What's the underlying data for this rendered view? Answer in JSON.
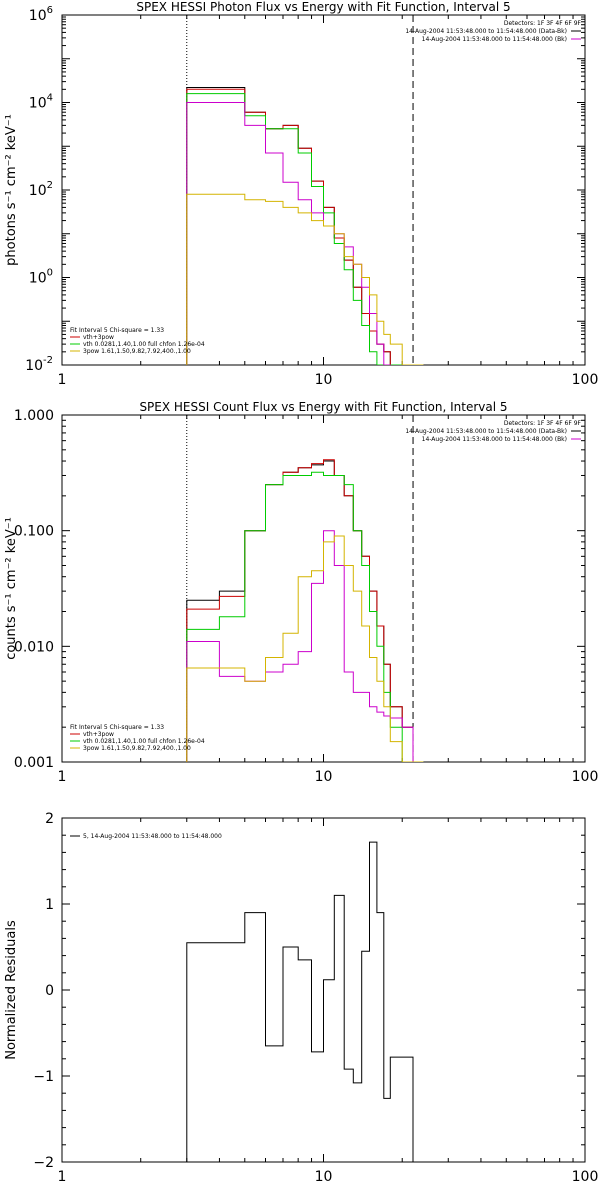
{
  "chart_data": [
    {
      "type": "line",
      "title": "SPEX HESSI Photon Flux vs Energy with Fit Function, Interval 5",
      "xlabel": "",
      "ylabel": "photons s⁻¹ cm⁻² keV⁻¹",
      "xscale": "log",
      "yscale": "log",
      "xlim": [
        1,
        100
      ],
      "ylim": [
        0.01,
        1000000
      ],
      "x_ticklabels": [
        "1",
        "10",
        "100"
      ],
      "y_ticks": [
        {
          "v": 0.01,
          "base": "10",
          "exp": "-2"
        },
        {
          "v": 1,
          "base": "10",
          "exp": "0"
        },
        {
          "v": 100,
          "base": "10",
          "exp": "2"
        },
        {
          "v": 10000,
          "base": "10",
          "exp": "4"
        },
        {
          "v": 1000000,
          "base": "10",
          "exp": "6"
        }
      ],
      "vlines": [
        {
          "x": 3.0,
          "style": "dotted"
        },
        {
          "x": 22.0,
          "style": "dashed"
        }
      ],
      "legend_right": {
        "placement": "top-right",
        "lines": [
          "Detectors: 1F 3F 4F 6F 9F",
          "14-Aug-2004 11:53:48.000 to 11:54:48.000 (Data-Bk)",
          "14-Aug-2004 11:53:48.000 to 11:54:48.000 (Bk)"
        ],
        "colors": [
          "",
          "#000000",
          "#cc00cc"
        ]
      },
      "legend_left": {
        "placement": "bottom-left",
        "lines": [
          "Fit Interval 5   Chi-square = 1.33",
          "vth+3pow",
          "vth 0.0281,1.40,1.00  full chfon 1.26e-04",
          "3pow 1.61,1.50,9.82,7.92,400.,1.00"
        ],
        "colors": [
          "",
          "#cc0000",
          "#00cc00",
          "#d4b400"
        ]
      },
      "series": [
        {
          "color": "#000000",
          "edges": [
            3.0,
            4.0,
            5.0,
            6.0,
            7.0,
            8.0,
            9.0,
            10.0,
            11.0,
            12.0,
            13.0,
            14.0,
            15.0,
            16.0,
            17.0,
            18.0,
            20.0,
            22.0,
            24.0
          ],
          "values": [
            22000,
            22000,
            6000,
            2500,
            3000,
            900,
            160,
            40,
            8,
            2.5,
            0.6,
            0.15,
            0.06,
            0.03,
            0.02,
            0.01,
            0.01,
            0.01
          ]
        },
        {
          "color": "#cc0000",
          "edges": [
            3.0,
            4.0,
            5.0,
            6.0,
            7.0,
            8.0,
            9.0,
            10.0,
            11.0,
            12.0,
            13.0,
            14.0,
            15.0,
            16.0,
            17.0,
            18.0,
            20.0,
            22.0,
            24.0
          ],
          "values": [
            20000,
            20000,
            6000,
            2500,
            3000,
            900,
            160,
            40,
            8,
            2.5,
            0.6,
            0.15,
            0.06,
            0.03,
            0.02,
            0.01,
            0.01,
            0.01
          ]
        },
        {
          "color": "#00cc00",
          "edges": [
            3.0,
            4.0,
            5.0,
            6.0,
            7.0,
            8.0,
            9.0,
            10.0,
            11.0,
            12.0,
            13.0,
            14.0,
            15.0,
            16.0,
            17.0,
            18.0,
            20.0,
            22.0
          ],
          "values": [
            16000,
            16000,
            5000,
            2500,
            2500,
            700,
            120,
            30,
            6,
            1.5,
            0.3,
            0.08,
            0.02,
            0.01,
            0.01,
            0.01,
            0.01
          ]
        },
        {
          "color": "#cc00cc",
          "edges": [
            3.0,
            4.0,
            5.0,
            6.0,
            7.0,
            8.0,
            9.0,
            10.0,
            11.0,
            12.0,
            13.0,
            14.0,
            15.0,
            16.0,
            17.0,
            18.0
          ],
          "values": [
            10000,
            10000,
            3000,
            700,
            150,
            60,
            30,
            15,
            10,
            5,
            2,
            0.6,
            0.15,
            0.03,
            0.01
          ]
        },
        {
          "color": "#d4b400",
          "edges": [
            3.0,
            4.0,
            5.0,
            6.0,
            7.0,
            8.0,
            9.0,
            10.0,
            11.0,
            12.0,
            13.0,
            14.0,
            15.0,
            16.0,
            17.0,
            18.0,
            20.0,
            22.0,
            24.0
          ],
          "values": [
            80,
            80,
            60,
            55,
            40,
            30,
            20,
            15,
            10,
            3,
            2,
            1,
            0.4,
            0.1,
            0.05,
            0.03,
            0.01,
            0.01
          ]
        }
      ]
    },
    {
      "type": "line",
      "title": "SPEX HESSI Count Flux vs Energy with Fit Function, Interval 5",
      "xlabel": "",
      "ylabel": "counts s⁻¹ cm⁻² keV⁻¹",
      "xscale": "log",
      "yscale": "log",
      "xlim": [
        1,
        100
      ],
      "ylim": [
        0.001,
        1.0
      ],
      "x_ticklabels": [
        "1",
        "10",
        "100"
      ],
      "y_ticks": [
        {
          "v": 0.001,
          "label": "0.001"
        },
        {
          "v": 0.01,
          "label": "0.010"
        },
        {
          "v": 0.1,
          "label": "0.100"
        },
        {
          "v": 1.0,
          "label": "1.000"
        }
      ],
      "vlines": [
        {
          "x": 3.0,
          "style": "dotted"
        },
        {
          "x": 22.0,
          "style": "dashed"
        }
      ],
      "legend_right": {
        "placement": "top-right",
        "lines": [
          "Detectors: 1F 3F 4F 6F 9F",
          "14-Aug-2004 11:53:48.000 to 11:54:48.000 (Data-Bk)",
          "14-Aug-2004 11:53:48.000 to 11:54:48.000 (Bk)"
        ],
        "colors": [
          "",
          "#000000",
          "#cc00cc"
        ]
      },
      "legend_left": {
        "placement": "bottom-left",
        "lines": [
          "Fit Interval 5   Chi-square = 1.33",
          "vth+3pow",
          "vth 0.0281,1.40,1.00  full chfon 1.26e-04",
          "3pow 1.61,1.50,9.82,7.92,400.,1.00"
        ],
        "colors": [
          "",
          "#cc0000",
          "#00cc00",
          "#d4b400"
        ]
      },
      "series": [
        {
          "color": "#000000",
          "edges": [
            3.0,
            4.0,
            5.0,
            6.0,
            7.0,
            8.0,
            9.0,
            10.0,
            11.0,
            12.0,
            13.0,
            14.0,
            15.0,
            16.0,
            17.0,
            18.0,
            20.0,
            22.0
          ],
          "values": [
            0.025,
            0.03,
            0.1,
            0.25,
            0.32,
            0.35,
            0.37,
            0.4,
            0.3,
            0.2,
            0.1,
            0.06,
            0.03,
            0.015,
            0.007,
            0.003,
            0.002
          ]
        },
        {
          "color": "#cc0000",
          "edges": [
            3.0,
            4.0,
            5.0,
            6.0,
            7.0,
            8.0,
            9.0,
            10.0,
            11.0,
            12.0,
            13.0,
            14.0,
            15.0,
            16.0,
            17.0,
            18.0,
            20.0,
            22.0
          ],
          "values": [
            0.021,
            0.027,
            0.1,
            0.25,
            0.32,
            0.35,
            0.38,
            0.41,
            0.3,
            0.2,
            0.1,
            0.06,
            0.03,
            0.015,
            0.007,
            0.003,
            0.002
          ]
        },
        {
          "color": "#00cc00",
          "edges": [
            3.0,
            4.0,
            5.0,
            6.0,
            7.0,
            8.0,
            9.0,
            10.0,
            11.0,
            12.0,
            13.0,
            14.0,
            15.0,
            16.0,
            17.0,
            18.0,
            20.0,
            22.0
          ],
          "values": [
            0.014,
            0.018,
            0.1,
            0.25,
            0.3,
            0.3,
            0.32,
            0.3,
            0.3,
            0.25,
            0.1,
            0.05,
            0.02,
            0.01,
            0.004,
            0.002,
            0.001
          ]
        },
        {
          "color": "#cc00cc",
          "edges": [
            3.0,
            4.0,
            5.0,
            6.0,
            7.0,
            8.0,
            9.0,
            10.0,
            11.0,
            12.0,
            13.0,
            14.0,
            15.0,
            16.0,
            17.0,
            18.0,
            20.0,
            22.0
          ],
          "values": [
            0.011,
            0.0055,
            0.005,
            0.006,
            0.007,
            0.009,
            0.035,
            0.1,
            0.05,
            0.006,
            0.004,
            0.004,
            0.003,
            0.0027,
            0.0025,
            0.0024,
            0.002
          ]
        },
        {
          "color": "#d4b400",
          "edges": [
            3.0,
            4.0,
            5.0,
            6.0,
            7.0,
            8.0,
            9.0,
            10.0,
            11.0,
            12.0,
            13.0,
            14.0,
            15.0,
            16.0,
            17.0,
            18.0,
            20.0,
            22.0,
            24.0
          ],
          "values": [
            0.0065,
            0.0065,
            0.005,
            0.008,
            0.013,
            0.04,
            0.045,
            0.08,
            0.09,
            0.05,
            0.03,
            0.015,
            0.008,
            0.005,
            0.003,
            0.0015,
            0.001,
            0.001
          ]
        }
      ]
    },
    {
      "type": "line",
      "title": "",
      "xlabel": "",
      "ylabel": "Normalized Residuals",
      "xscale": "log",
      "yscale": "linear",
      "xlim": [
        1,
        100
      ],
      "ylim": [
        -2,
        2
      ],
      "x_ticklabels": [
        "1",
        "10",
        "100"
      ],
      "y_ticks": [
        {
          "v": -2,
          "label": "−2"
        },
        {
          "v": -1,
          "label": "−1"
        },
        {
          "v": 0,
          "label": "0"
        },
        {
          "v": 1,
          "label": "1"
        },
        {
          "v": 2,
          "label": "2"
        }
      ],
      "legend_left": {
        "placement": "top-left",
        "lines": [
          "5, 14-Aug-2004 11:53:48.000 to 11:54:48.000"
        ],
        "colors": [
          "#000000"
        ]
      },
      "series": [
        {
          "color": "#000000",
          "edges": [
            3.0,
            4.0,
            5.0,
            6.0,
            7.0,
            8.0,
            9.0,
            10.0,
            11.0,
            12.0,
            13.0,
            14.0,
            15.0,
            16.0,
            17.0,
            18.0,
            20.0,
            22.0
          ],
          "values": [
            0.55,
            0.55,
            0.9,
            -0.65,
            0.5,
            0.35,
            -0.72,
            0.12,
            1.1,
            -0.92,
            -1.08,
            0.45,
            1.72,
            0.9,
            -1.26,
            -0.78,
            -0.78
          ]
        }
      ]
    }
  ]
}
